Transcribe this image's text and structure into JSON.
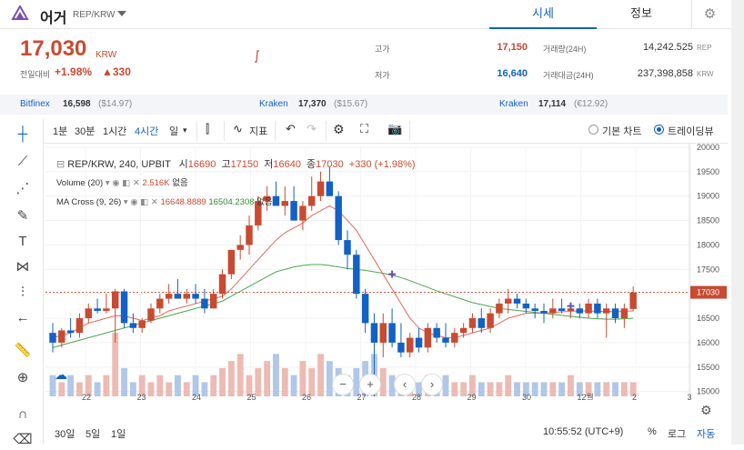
{
  "header": {
    "coin_name": "어거",
    "pair": "REP/KRW",
    "tab_price": "시세",
    "tab_info": "정보"
  },
  "price": {
    "value": "17,030",
    "unit": "KRW",
    "change_label": "전일대비",
    "change_pct": "+1.98%",
    "change_amt": "▲330"
  },
  "stats": {
    "high_label": "고가",
    "high": "17,150",
    "low_label": "저가",
    "low": "16,640",
    "volume_label": "거래량(24H)",
    "volume": "14,242.525",
    "volume_unit": "REP",
    "amount_label": "거래대금(24H)",
    "amount": "237,398,858",
    "amount_unit": "KRW",
    "colors": {
      "up": "#c84a31",
      "down": "#1261c4"
    }
  },
  "exchanges": [
    {
      "name": "Bitfinex",
      "value": "16,598",
      "sub": "($14.97)"
    },
    {
      "name": "Kraken",
      "value": "17,370",
      "sub": "($15.67)"
    },
    {
      "name": "Kraken",
      "value": "17,114",
      "sub": "(€12.92)"
    }
  ],
  "toolbar": {
    "intervals": [
      "1분",
      "30분",
      "1시간",
      "4시간",
      "일"
    ],
    "active_interval": "4시간",
    "indicator_label": "지표",
    "basic_chart": "기본 차트",
    "tradingview": "트레이딩뷰"
  },
  "legend": {
    "symbol": "REP/KRW, 240, UPBIT",
    "o_label": "시",
    "o": "16690",
    "h_label": "고",
    "h": "17150",
    "l_label": "저",
    "l": "16640",
    "c_label": "종",
    "c": "17030",
    "chg": "+330 (+1.98%)",
    "volume_name": "Volume (20)",
    "volume_val": "2.516K",
    "volume_none": "없음",
    "ma_name": "MA Cross (9, 26)",
    "ma_val1": "16648.8889",
    "ma_val2": "16504.2308",
    "ma_none": "없음"
  },
  "bottom": {
    "ranges": [
      "30일",
      "5일",
      "1일"
    ],
    "clock": "10:55:52 (UTC+9)",
    "pct": "%",
    "log": "로그",
    "auto": "자동"
  },
  "chart_data": {
    "type": "candlestick",
    "x_ticks": [
      "22",
      "23",
      "24",
      "25",
      "26",
      "27",
      "28",
      "29",
      "30",
      "12월",
      "2",
      "3"
    ],
    "y_ticks": [
      15000,
      15500,
      16000,
      16500,
      17000,
      17500,
      18000,
      18500,
      19000,
      19500,
      20000
    ],
    "ylim": [
      14900,
      20000
    ],
    "last_price": 17030,
    "candles": [
      [
        16200,
        16400,
        15800,
        16000
      ],
      [
        16000,
        16300,
        15900,
        16250
      ],
      [
        16250,
        16500,
        16100,
        16200
      ],
      [
        16200,
        16600,
        16100,
        16500
      ],
      [
        16500,
        16800,
        16400,
        16700
      ],
      [
        16700,
        16900,
        16600,
        16650
      ],
      [
        16650,
        17000,
        16600,
        16700
      ],
      [
        16700,
        17100,
        16000,
        17050
      ],
      [
        17050,
        17100,
        16300,
        16400
      ],
      [
        16400,
        16600,
        16200,
        16300
      ],
      [
        16300,
        16500,
        16200,
        16450
      ],
      [
        16450,
        16800,
        16400,
        16700
      ],
      [
        16700,
        17000,
        16600,
        16900
      ],
      [
        16900,
        17200,
        16800,
        17000
      ],
      [
        17000,
        17300,
        16900,
        16900
      ],
      [
        16900,
        17100,
        16800,
        17000
      ],
      [
        17000,
        17200,
        16800,
        16900
      ],
      [
        16900,
        17100,
        16600,
        16700
      ],
      [
        16700,
        17100,
        16700,
        17000
      ],
      [
        17000,
        17500,
        16900,
        17400
      ],
      [
        17400,
        17900,
        17300,
        17900
      ],
      [
        17900,
        18200,
        17700,
        18000
      ],
      [
        18000,
        18600,
        17800,
        18400
      ],
      [
        18400,
        19000,
        18300,
        18900
      ],
      [
        18900,
        19200,
        18700,
        19000
      ],
      [
        19000,
        19300,
        18800,
        18800
      ],
      [
        18800,
        19200,
        18600,
        18900
      ],
      [
        18900,
        19200,
        18500,
        18500
      ],
      [
        18500,
        18900,
        18300,
        18800
      ],
      [
        18800,
        19400,
        18700,
        19000
      ],
      [
        19000,
        19500,
        18900,
        19300
      ],
      [
        19300,
        19600,
        19000,
        19000
      ],
      [
        19000,
        19100,
        18000,
        18100
      ],
      [
        18100,
        18300,
        17500,
        17800
      ],
      [
        17800,
        17900,
        16900,
        17000
      ],
      [
        17000,
        17100,
        16200,
        16400
      ],
      [
        16400,
        16600,
        14900,
        16000
      ],
      [
        16000,
        16600,
        15700,
        16400
      ],
      [
        16400,
        16700,
        15900,
        16000
      ],
      [
        16000,
        16400,
        15700,
        15800
      ],
      [
        15800,
        16200,
        15700,
        16100
      ],
      [
        16100,
        16300,
        15800,
        15900
      ],
      [
        15900,
        16400,
        15800,
        16300
      ],
      [
        16300,
        16400,
        16000,
        16100
      ],
      [
        16100,
        16400,
        15900,
        16000
      ],
      [
        16000,
        16300,
        15900,
        16200
      ],
      [
        16200,
        16400,
        16100,
        16300
      ],
      [
        16300,
        16600,
        16200,
        16500
      ],
      [
        16500,
        16700,
        16200,
        16300
      ],
      [
        16300,
        16700,
        16200,
        16600
      ],
      [
        16600,
        16900,
        16500,
        16800
      ],
      [
        16800,
        17100,
        16600,
        16900
      ],
      [
        16900,
        17000,
        16700,
        16800
      ],
      [
        16800,
        16900,
        16600,
        16700
      ],
      [
        16700,
        16800,
        16500,
        16650
      ],
      [
        16650,
        16800,
        16400,
        16600
      ],
      [
        16600,
        16900,
        16500,
        16700
      ],
      [
        16700,
        16900,
        16600,
        16650
      ],
      [
        16650,
        16800,
        16500,
        16700
      ],
      [
        16700,
        16800,
        16500,
        16600
      ],
      [
        16600,
        16900,
        16500,
        16800
      ],
      [
        16800,
        16900,
        16500,
        16600
      ],
      [
        16600,
        16800,
        16100,
        16700
      ],
      [
        16700,
        16800,
        16400,
        16500
      ],
      [
        16500,
        16800,
        16300,
        16700
      ],
      [
        16690,
        17150,
        16640,
        17030
      ]
    ],
    "volumes": [
      3,
      2,
      3,
      2,
      3,
      2,
      3,
      9,
      4,
      2,
      3,
      2,
      3,
      2,
      3,
      2,
      3,
      2,
      3,
      4,
      5,
      6,
      3,
      4,
      5,
      6,
      4,
      3,
      5,
      4,
      6,
      5,
      4,
      3,
      4,
      5,
      6,
      4,
      3,
      3,
      2,
      2,
      3,
      2,
      3,
      2,
      2,
      3,
      2,
      2,
      2,
      3,
      2,
      2,
      2,
      2,
      2,
      2,
      3,
      2,
      2,
      2,
      2,
      2,
      2,
      2
    ],
    "ma_fast": [
      16100,
      16150,
      16200,
      16300,
      16400,
      16450,
      16500,
      16550,
      16550,
      16500,
      16450,
      16500,
      16550,
      16650,
      16700,
      16750,
      16800,
      16850,
      16900,
      16950,
      17100,
      17300,
      17500,
      17700,
      17900,
      18100,
      18250,
      18350,
      18450,
      18600,
      18700,
      18800,
      18700,
      18500,
      18300,
      18000,
      17700,
      17400,
      17100,
      16800,
      16500,
      16300,
      16200,
      16150,
      16100,
      16100,
      16150,
      16200,
      16250,
      16300,
      16400,
      16500,
      16550,
      16600,
      16600,
      16600,
      16620,
      16630,
      16640,
      16650,
      16650,
      16640,
      16640,
      16630,
      16640,
      16650
    ],
    "ma_slow": [
      15900,
      15950,
      16000,
      16050,
      16100,
      16150,
      16200,
      16250,
      16300,
      16350,
      16400,
      16450,
      16500,
      16550,
      16600,
      16650,
      16700,
      16750,
      16800,
      16850,
      16950,
      17050,
      17150,
      17250,
      17350,
      17450,
      17500,
      17550,
      17580,
      17600,
      17600,
      17580,
      17550,
      17520,
      17500,
      17480,
      17450,
      17420,
      17380,
      17330,
      17270,
      17200,
      17130,
      17060,
      17000,
      16940,
      16880,
      16820,
      16780,
      16740,
      16700,
      16680,
      16660,
      16640,
      16620,
      16600,
      16580,
      16560,
      16540,
      16520,
      16500,
      16490,
      16480,
      16480,
      16490,
      16500
    ],
    "markers": [
      {
        "i": 38,
        "price": 17400
      },
      {
        "i": 58,
        "price": 16750
      }
    ]
  }
}
